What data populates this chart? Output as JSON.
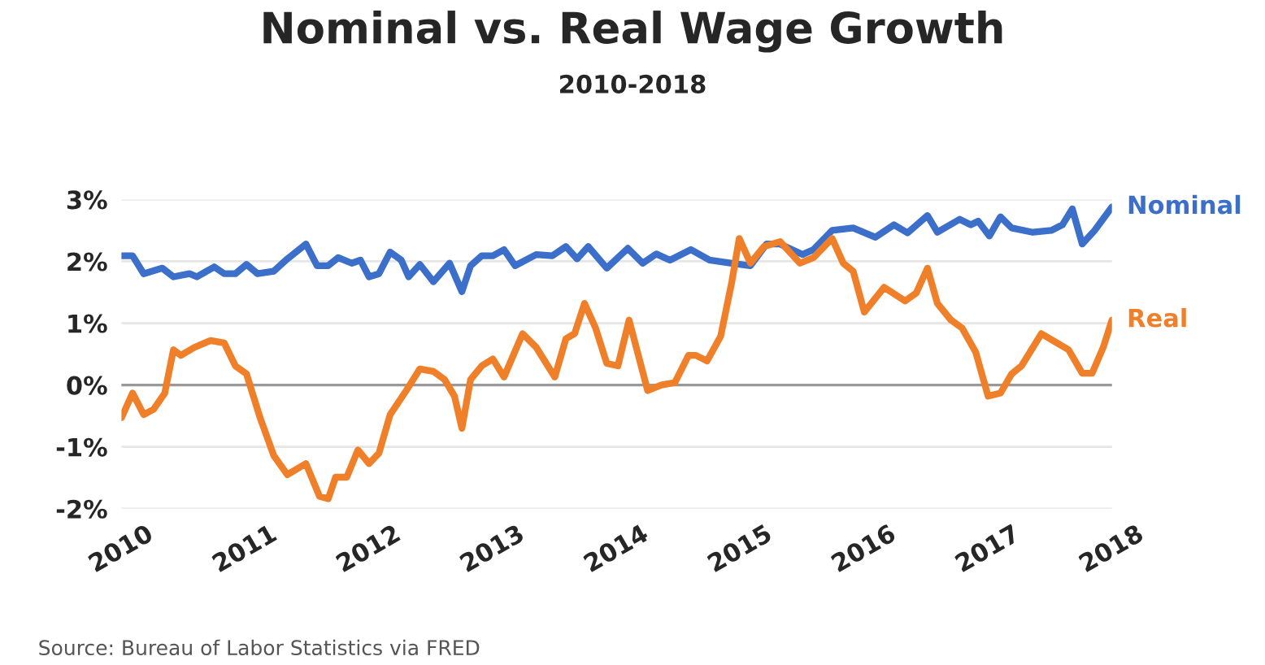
{
  "chart_data": {
    "type": "line",
    "title": "Nominal vs. Real Wage Growth",
    "subtitle": "2010-2018",
    "annotations": [
      "Source: Bureau of Labor Statistics via FRED"
    ],
    "xlim": [
      2010,
      2018
    ],
    "xticks": [
      {
        "value": 2010,
        "label": "2010"
      },
      {
        "value": 2011,
        "label": "2011"
      },
      {
        "value": 2012,
        "label": "2012"
      },
      {
        "value": 2013,
        "label": "2013"
      },
      {
        "value": 2014,
        "label": "2014"
      },
      {
        "value": 2015,
        "label": "2015"
      },
      {
        "value": 2016,
        "label": "2016"
      },
      {
        "value": 2017,
        "label": "2017"
      },
      {
        "value": 2018,
        "label": "2018"
      }
    ],
    "ylim": [
      -2,
      3
    ],
    "yticks": [
      {
        "value": -2,
        "label": "-2%"
      },
      {
        "value": -1,
        "label": "-1%"
      },
      {
        "value": 0,
        "label": "0%"
      },
      {
        "value": 1,
        "label": "1%"
      },
      {
        "value": 2,
        "label": "2%"
      },
      {
        "value": 3,
        "label": "3%"
      }
    ],
    "grid": "y",
    "legend": false,
    "marker": "none",
    "line_style": "solid",
    "ref_lines": [
      {
        "axis": "y",
        "value": 0,
        "color": "#999999"
      }
    ],
    "series": [
      {
        "name": "Nominal",
        "color": "#3b6fc9",
        "x": [
          2010.0,
          2010.09,
          2010.18,
          2010.33,
          2010.42,
          2010.55,
          2010.61,
          2010.75,
          2010.83,
          2010.92,
          2011.01,
          2011.1,
          2011.23,
          2011.34,
          2011.49,
          2011.58,
          2011.67,
          2011.75,
          2011.86,
          2011.93,
          2012.0,
          2012.08,
          2012.17,
          2012.26,
          2012.32,
          2012.41,
          2012.52,
          2012.65,
          2012.75,
          2012.82,
          2012.91,
          2013.0,
          2013.09,
          2013.18,
          2013.35,
          2013.48,
          2013.59,
          2013.68,
          2013.77,
          2013.92,
          2014.09,
          2014.21,
          2014.32,
          2014.43,
          2014.6,
          2014.75,
          2014.93,
          2015.08,
          2015.21,
          2015.32,
          2015.5,
          2015.59,
          2015.74,
          2015.91,
          2016.09,
          2016.24,
          2016.35,
          2016.51,
          2016.59,
          2016.77,
          2016.86,
          2016.92,
          2017.01,
          2017.1,
          2017.19,
          2017.36,
          2017.51,
          2017.6,
          2017.68,
          2017.76,
          2017.86,
          2018.0
        ],
        "values": [
          2.09,
          2.09,
          1.8,
          1.89,
          1.75,
          1.8,
          1.75,
          1.91,
          1.8,
          1.8,
          1.95,
          1.8,
          1.84,
          2.04,
          2.28,
          1.93,
          1.93,
          2.06,
          1.97,
          2.02,
          1.75,
          1.8,
          2.15,
          2.02,
          1.75,
          1.95,
          1.67,
          1.97,
          1.51,
          1.93,
          2.09,
          2.09,
          2.19,
          1.93,
          2.11,
          2.09,
          2.24,
          2.04,
          2.24,
          1.89,
          2.21,
          1.97,
          2.12,
          2.02,
          2.19,
          2.02,
          1.97,
          1.93,
          2.28,
          2.28,
          2.11,
          2.19,
          2.5,
          2.54,
          2.39,
          2.59,
          2.46,
          2.74,
          2.47,
          2.68,
          2.59,
          2.65,
          2.41,
          2.72,
          2.54,
          2.47,
          2.5,
          2.59,
          2.85,
          2.28,
          2.5,
          2.88
        ]
      },
      {
        "name": "Real",
        "color": "#f07f2a",
        "x": [
          2010.0,
          2010.09,
          2010.18,
          2010.26,
          2010.35,
          2010.42,
          2010.48,
          2010.59,
          2010.72,
          2010.83,
          2010.92,
          2011.01,
          2011.12,
          2011.23,
          2011.34,
          2011.49,
          2011.6,
          2011.67,
          2011.73,
          2011.82,
          2011.91,
          2012.0,
          2012.08,
          2012.17,
          2012.3,
          2012.41,
          2012.52,
          2012.61,
          2012.69,
          2012.75,
          2012.82,
          2012.91,
          2013.0,
          2013.09,
          2013.24,
          2013.35,
          2013.5,
          2013.59,
          2013.66,
          2013.74,
          2013.83,
          2013.92,
          2014.01,
          2014.1,
          2014.25,
          2014.36,
          2014.47,
          2014.58,
          2014.64,
          2014.73,
          2014.84,
          2014.93,
          2014.99,
          2015.08,
          2015.19,
          2015.32,
          2015.48,
          2015.59,
          2015.74,
          2015.83,
          2015.91,
          2016.0,
          2016.16,
          2016.33,
          2016.42,
          2016.51,
          2016.59,
          2016.7,
          2016.79,
          2016.9,
          2017.0,
          2017.1,
          2017.19,
          2017.27,
          2017.43,
          2017.54,
          2017.65,
          2017.76,
          2017.84,
          2017.93,
          2018.0
        ],
        "values": [
          -0.53,
          -0.13,
          -0.48,
          -0.39,
          -0.13,
          0.57,
          0.48,
          0.61,
          0.72,
          0.68,
          0.31,
          0.18,
          -0.53,
          -1.14,
          -1.45,
          -1.27,
          -1.8,
          -1.84,
          -1.49,
          -1.49,
          -1.05,
          -1.27,
          -1.1,
          -0.48,
          -0.09,
          0.26,
          0.22,
          0.09,
          -0.18,
          -0.7,
          0.09,
          0.31,
          0.42,
          0.13,
          0.83,
          0.61,
          0.13,
          0.75,
          0.83,
          1.32,
          0.92,
          0.35,
          0.31,
          1.05,
          -0.09,
          0.0,
          0.04,
          0.48,
          0.48,
          0.39,
          0.79,
          1.67,
          2.37,
          1.97,
          2.24,
          2.32,
          1.97,
          2.06,
          2.37,
          1.97,
          1.84,
          1.18,
          1.58,
          1.36,
          1.49,
          1.89,
          1.32,
          1.05,
          0.92,
          0.53,
          -0.18,
          -0.13,
          0.18,
          0.31,
          0.83,
          0.7,
          0.57,
          0.19,
          0.19,
          0.61,
          1.05
        ]
      }
    ]
  }
}
